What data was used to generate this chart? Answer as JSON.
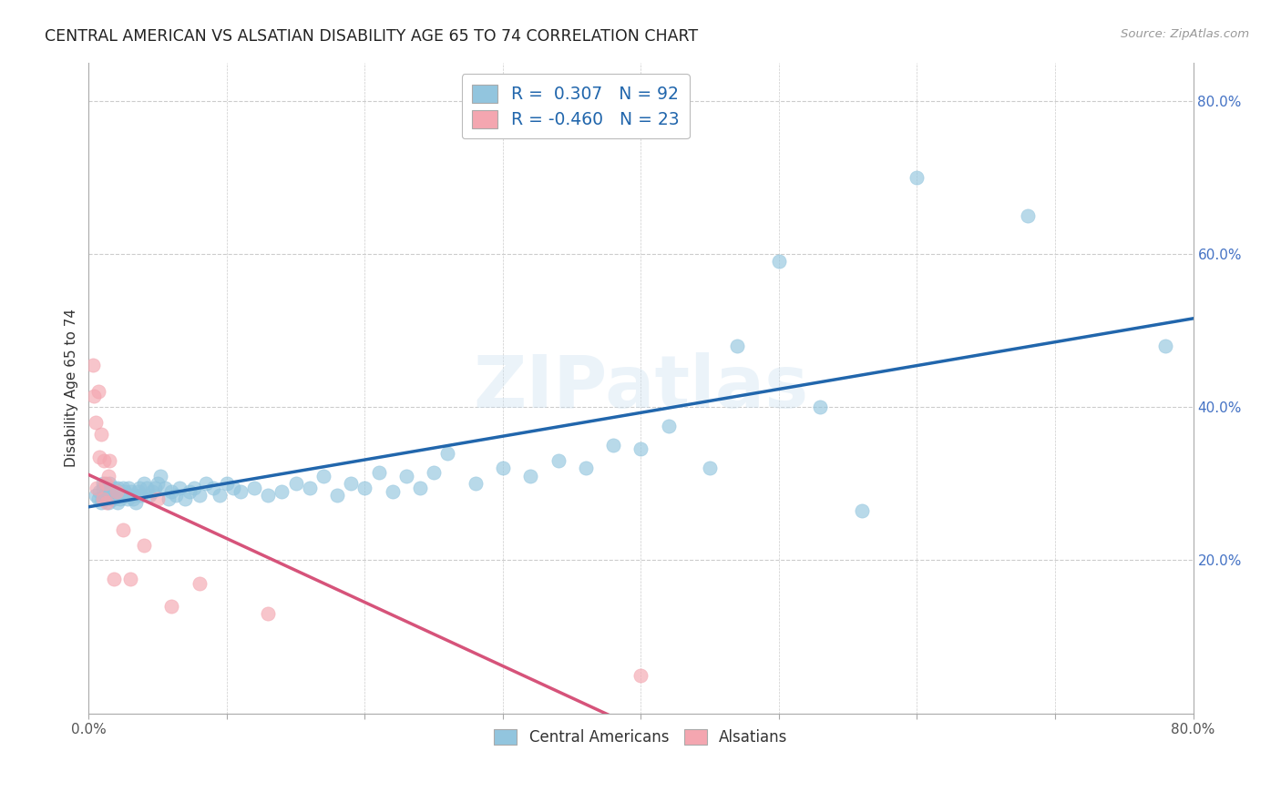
{
  "title": "CENTRAL AMERICAN VS ALSATIAN DISABILITY AGE 65 TO 74 CORRELATION CHART",
  "source": "Source: ZipAtlas.com",
  "ylabel": "Disability Age 65 to 74",
  "xlim": [
    0,
    0.8
  ],
  "ylim": [
    0,
    0.85
  ],
  "blue_R": 0.307,
  "blue_N": 92,
  "pink_R": -0.46,
  "pink_N": 23,
  "blue_color": "#92c5de",
  "pink_color": "#f4a6b0",
  "blue_line_color": "#2166ac",
  "pink_line_color": "#d6537a",
  "watermark_text": "ZIPatlas",
  "legend_label1": "R =  0.307   N = 92",
  "legend_label2": "R = -0.460   N = 23",
  "bottom_legend1": "Central Americans",
  "bottom_legend2": "Alsatians",
  "blue_x": [
    0.005,
    0.007,
    0.008,
    0.009,
    0.01,
    0.01,
    0.012,
    0.013,
    0.013,
    0.014,
    0.015,
    0.015,
    0.015,
    0.016,
    0.016,
    0.017,
    0.018,
    0.018,
    0.019,
    0.02,
    0.021,
    0.021,
    0.022,
    0.022,
    0.023,
    0.024,
    0.025,
    0.026,
    0.027,
    0.028,
    0.029,
    0.03,
    0.031,
    0.032,
    0.033,
    0.034,
    0.036,
    0.037,
    0.038,
    0.04,
    0.042,
    0.044,
    0.046,
    0.048,
    0.05,
    0.052,
    0.055,
    0.058,
    0.06,
    0.063,
    0.066,
    0.07,
    0.073,
    0.076,
    0.08,
    0.085,
    0.09,
    0.095,
    0.1,
    0.105,
    0.11,
    0.12,
    0.13,
    0.14,
    0.15,
    0.16,
    0.17,
    0.18,
    0.19,
    0.2,
    0.21,
    0.22,
    0.23,
    0.24,
    0.25,
    0.26,
    0.28,
    0.3,
    0.32,
    0.34,
    0.36,
    0.38,
    0.4,
    0.42,
    0.45,
    0.47,
    0.5,
    0.53,
    0.56,
    0.6,
    0.68,
    0.78
  ],
  "blue_y": [
    0.285,
    0.28,
    0.29,
    0.275,
    0.295,
    0.3,
    0.285,
    0.28,
    0.29,
    0.275,
    0.295,
    0.285,
    0.3,
    0.28,
    0.29,
    0.285,
    0.295,
    0.28,
    0.29,
    0.285,
    0.275,
    0.295,
    0.285,
    0.29,
    0.28,
    0.285,
    0.295,
    0.29,
    0.285,
    0.28,
    0.295,
    0.285,
    0.29,
    0.28,
    0.285,
    0.275,
    0.29,
    0.295,
    0.285,
    0.3,
    0.295,
    0.285,
    0.29,
    0.295,
    0.3,
    0.31,
    0.295,
    0.28,
    0.29,
    0.285,
    0.295,
    0.28,
    0.29,
    0.295,
    0.285,
    0.3,
    0.295,
    0.285,
    0.3,
    0.295,
    0.29,
    0.295,
    0.285,
    0.29,
    0.3,
    0.295,
    0.31,
    0.285,
    0.3,
    0.295,
    0.315,
    0.29,
    0.31,
    0.295,
    0.315,
    0.34,
    0.3,
    0.32,
    0.31,
    0.33,
    0.32,
    0.35,
    0.345,
    0.375,
    0.32,
    0.48,
    0.59,
    0.4,
    0.265,
    0.7,
    0.65,
    0.48
  ],
  "pink_x": [
    0.003,
    0.004,
    0.005,
    0.006,
    0.007,
    0.008,
    0.009,
    0.01,
    0.011,
    0.012,
    0.013,
    0.014,
    0.015,
    0.018,
    0.02,
    0.025,
    0.03,
    0.04,
    0.05,
    0.06,
    0.08,
    0.13,
    0.4
  ],
  "pink_y": [
    0.455,
    0.415,
    0.38,
    0.295,
    0.42,
    0.335,
    0.365,
    0.28,
    0.33,
    0.3,
    0.275,
    0.31,
    0.33,
    0.175,
    0.29,
    0.24,
    0.175,
    0.22,
    0.28,
    0.14,
    0.17,
    0.13,
    0.05
  ]
}
